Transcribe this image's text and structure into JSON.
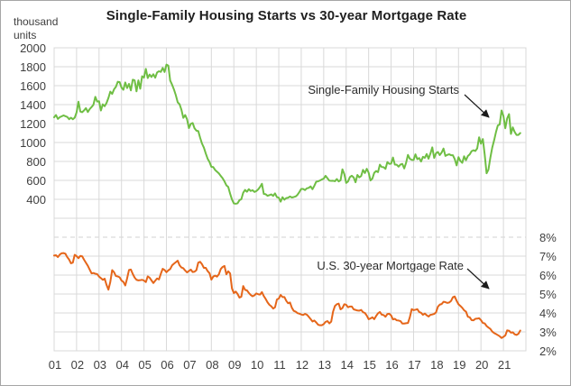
{
  "title": "Single-Family Housing Starts vs 30-year Mortgage Rate",
  "left_axis_unit": {
    "line1": "thousand",
    "line2": "units"
  },
  "annotations": [
    {
      "text": "Single-Family Housing Starts"
    },
    {
      "text": "U.S. 30-year Mortgage Rate"
    }
  ],
  "colors": {
    "housing_line": "#6fbe44",
    "rate_line": "#e5661a",
    "gridline": "#d9d9d9",
    "dashed_line": "#d9d9d9",
    "tick_text": "#3f3f3f",
    "title_text": "#1f1f1f",
    "arrow": "#1a1a1a"
  },
  "chart_data": {
    "type": "line",
    "title": "Single-Family Housing Starts vs 30-year Mortgage Rate",
    "x_frequency": "monthly",
    "x_start": "2001-01",
    "x_tick_labels": [
      "01",
      "02",
      "03",
      "04",
      "05",
      "06",
      "07",
      "08",
      "09",
      "10",
      "11",
      "12",
      "13",
      "14",
      "15",
      "16",
      "17",
      "18",
      "19",
      "20",
      "21"
    ],
    "left_axis": {
      "unit": "thousand units",
      "tick_labels": [
        2000,
        1800,
        1600,
        1400,
        1200,
        1000,
        800,
        600,
        400
      ],
      "gridline_step": 200
    },
    "right_axis": {
      "tick_labels": [
        "8%",
        "7%",
        "6%",
        "5%",
        "4%",
        "3%",
        "2%"
      ],
      "gridline_step_pct": 1
    },
    "zero_line_dashed_at_left_axis_value": 0,
    "legend_position": "in-plot annotations with arrows",
    "grid": true,
    "series": [
      {
        "name": "Single-Family Housing Starts",
        "axis": "left",
        "units": "thousands, SAAR",
        "values": [
          1266,
          1290,
          1249,
          1267,
          1276,
          1286,
          1278,
          1270,
          1246,
          1262,
          1246,
          1262,
          1318,
          1431,
          1327,
          1320,
          1339,
          1363,
          1322,
          1353,
          1374,
          1399,
          1482,
          1432,
          1436,
          1338,
          1403,
          1383,
          1418,
          1470,
          1537,
          1513,
          1561,
          1588,
          1641,
          1638,
          1579,
          1557,
          1634,
          1575,
          1619,
          1550,
          1663,
          1657,
          1540,
          1656,
          1568,
          1700,
          1685,
          1777,
          1681,
          1718,
          1692,
          1721,
          1684,
          1740,
          1752,
          1746,
          1788,
          1745,
          1823,
          1812,
          1654,
          1611,
          1560,
          1500,
          1425,
          1404,
          1346,
          1260,
          1290,
          1246,
          1152,
          1197,
          1206,
          1150,
          1125,
          1120,
          1050,
          988,
          946,
          884,
          829,
          794,
          743,
          740,
          710,
          692,
          674,
          647,
          623,
          589,
          548,
          531,
          460,
          398,
          357,
          353,
          358,
          391,
          401,
          470,
          499,
          480,
          507,
          488,
          496,
          478,
          487,
          505,
          531,
          564,
          457,
          454,
          437,
          444,
          452,
          436,
          463,
          423,
          417,
          375,
          422,
          396,
          413,
          417,
          430,
          419,
          424,
          430,
          448,
          477,
          510,
          509,
          498,
          516,
          521,
          536,
          507,
          543,
          586,
          590,
          599,
          610,
          618,
          648,
          623,
          597,
          595,
          596,
          591,
          614,
          589,
          601,
          717,
          667,
          573,
          589,
          635,
          649,
          631,
          580,
          657,
          632,
          646,
          711,
          677,
          722,
          681,
          599,
          620,
          680,
          699,
          687,
          766,
          741,
          739,
          722,
          793,
          775,
          776,
          841,
          767,
          765,
          745,
          767,
          774,
          726,
          785,
          869,
          828,
          817,
          815,
          875,
          824,
          836,
          799,
          849,
          838,
          878,
          829,
          883,
          948,
          837,
          886,
          900,
          867,
          894,
          936,
          858,
          869,
          876,
          866,
          865,
          824,
          758,
          845,
          805,
          785,
          854,
          813,
          857,
          875,
          908,
          918,
          910,
          938,
          1055,
          987,
          1037,
          871,
          675,
          714,
          839,
          944,
          1021,
          1108,
          1180,
          1190,
          1338,
          1280,
          1150,
          1255,
          1300,
          1090,
          1160,
          1111,
          1080,
          1080,
          1100
        ]
      },
      {
        "name": "U.S. 30-year Mortgage Rate",
        "axis": "right",
        "units": "percent",
        "values": [
          7.03,
          7.05,
          6.95,
          7.08,
          7.15,
          7.16,
          7.13,
          6.95,
          6.82,
          6.62,
          6.66,
          7.07,
          7.0,
          6.89,
          7.01,
          6.99,
          6.81,
          6.65,
          6.49,
          6.29,
          6.09,
          6.11,
          6.07,
          6.05,
          5.92,
          5.84,
          5.75,
          5.81,
          5.48,
          5.23,
          5.63,
          6.26,
          6.15,
          5.95,
          5.93,
          5.88,
          5.71,
          5.64,
          5.45,
          5.83,
          6.27,
          6.29,
          6.06,
          5.87,
          5.75,
          5.72,
          5.73,
          5.75,
          5.71,
          5.63,
          5.93,
          5.86,
          5.72,
          5.58,
          5.7,
          5.82,
          5.77,
          6.07,
          6.33,
          6.27,
          6.15,
          6.25,
          6.32,
          6.51,
          6.6,
          6.68,
          6.76,
          6.52,
          6.4,
          6.36,
          6.24,
          6.14,
          6.22,
          6.29,
          6.16,
          6.18,
          6.26,
          6.66,
          6.7,
          6.57,
          6.38,
          6.38,
          6.21,
          6.1,
          5.76,
          5.92,
          5.97,
          5.92,
          6.04,
          6.32,
          6.43,
          6.48,
          6.04,
          6.2,
          6.09,
          5.29,
          5.05,
          5.13,
          5.0,
          4.81,
          4.86,
          5.42,
          5.22,
          5.19,
          5.06,
          4.95,
          4.88,
          4.93,
          5.03,
          4.99,
          4.97,
          5.1,
          4.89,
          4.74,
          4.56,
          4.43,
          4.35,
          4.23,
          4.3,
          4.71,
          4.76,
          4.95,
          4.84,
          4.84,
          4.64,
          4.51,
          4.55,
          4.27,
          4.11,
          4.07,
          3.99,
          3.96,
          3.92,
          3.89,
          3.95,
          3.91,
          3.8,
          3.68,
          3.55,
          3.6,
          3.5,
          3.38,
          3.35,
          3.35,
          3.41,
          3.53,
          3.57,
          3.45,
          3.54,
          4.07,
          4.37,
          4.46,
          4.49,
          4.19,
          4.26,
          4.46,
          4.43,
          4.3,
          4.34,
          4.34,
          4.19,
          4.16,
          4.13,
          4.12,
          4.16,
          4.04,
          4.0,
          3.86,
          3.67,
          3.71,
          3.77,
          3.67,
          3.84,
          3.98,
          4.05,
          3.91,
          3.89,
          3.8,
          3.94,
          3.96,
          3.87,
          3.66,
          3.69,
          3.61,
          3.6,
          3.57,
          3.44,
          3.44,
          3.46,
          3.47,
          3.77,
          4.2,
          4.15,
          4.17,
          4.2,
          4.05,
          4.01,
          3.9,
          3.97,
          3.88,
          3.81,
          3.9,
          3.92,
          3.95,
          4.03,
          4.33,
          4.44,
          4.47,
          4.59,
          4.57,
          4.53,
          4.55,
          4.63,
          4.83,
          4.87,
          4.64,
          4.46,
          4.37,
          4.27,
          4.14,
          4.07,
          3.8,
          3.77,
          3.62,
          3.61,
          3.69,
          3.7,
          3.72,
          3.62,
          3.47,
          3.45,
          3.31,
          3.23,
          3.16,
          3.02,
          2.94,
          2.89,
          2.83,
          2.77,
          2.68,
          2.74,
          2.81,
          3.08,
          3.06,
          2.96,
          2.98,
          2.87,
          2.84,
          2.9,
          3.07
        ]
      }
    ]
  }
}
